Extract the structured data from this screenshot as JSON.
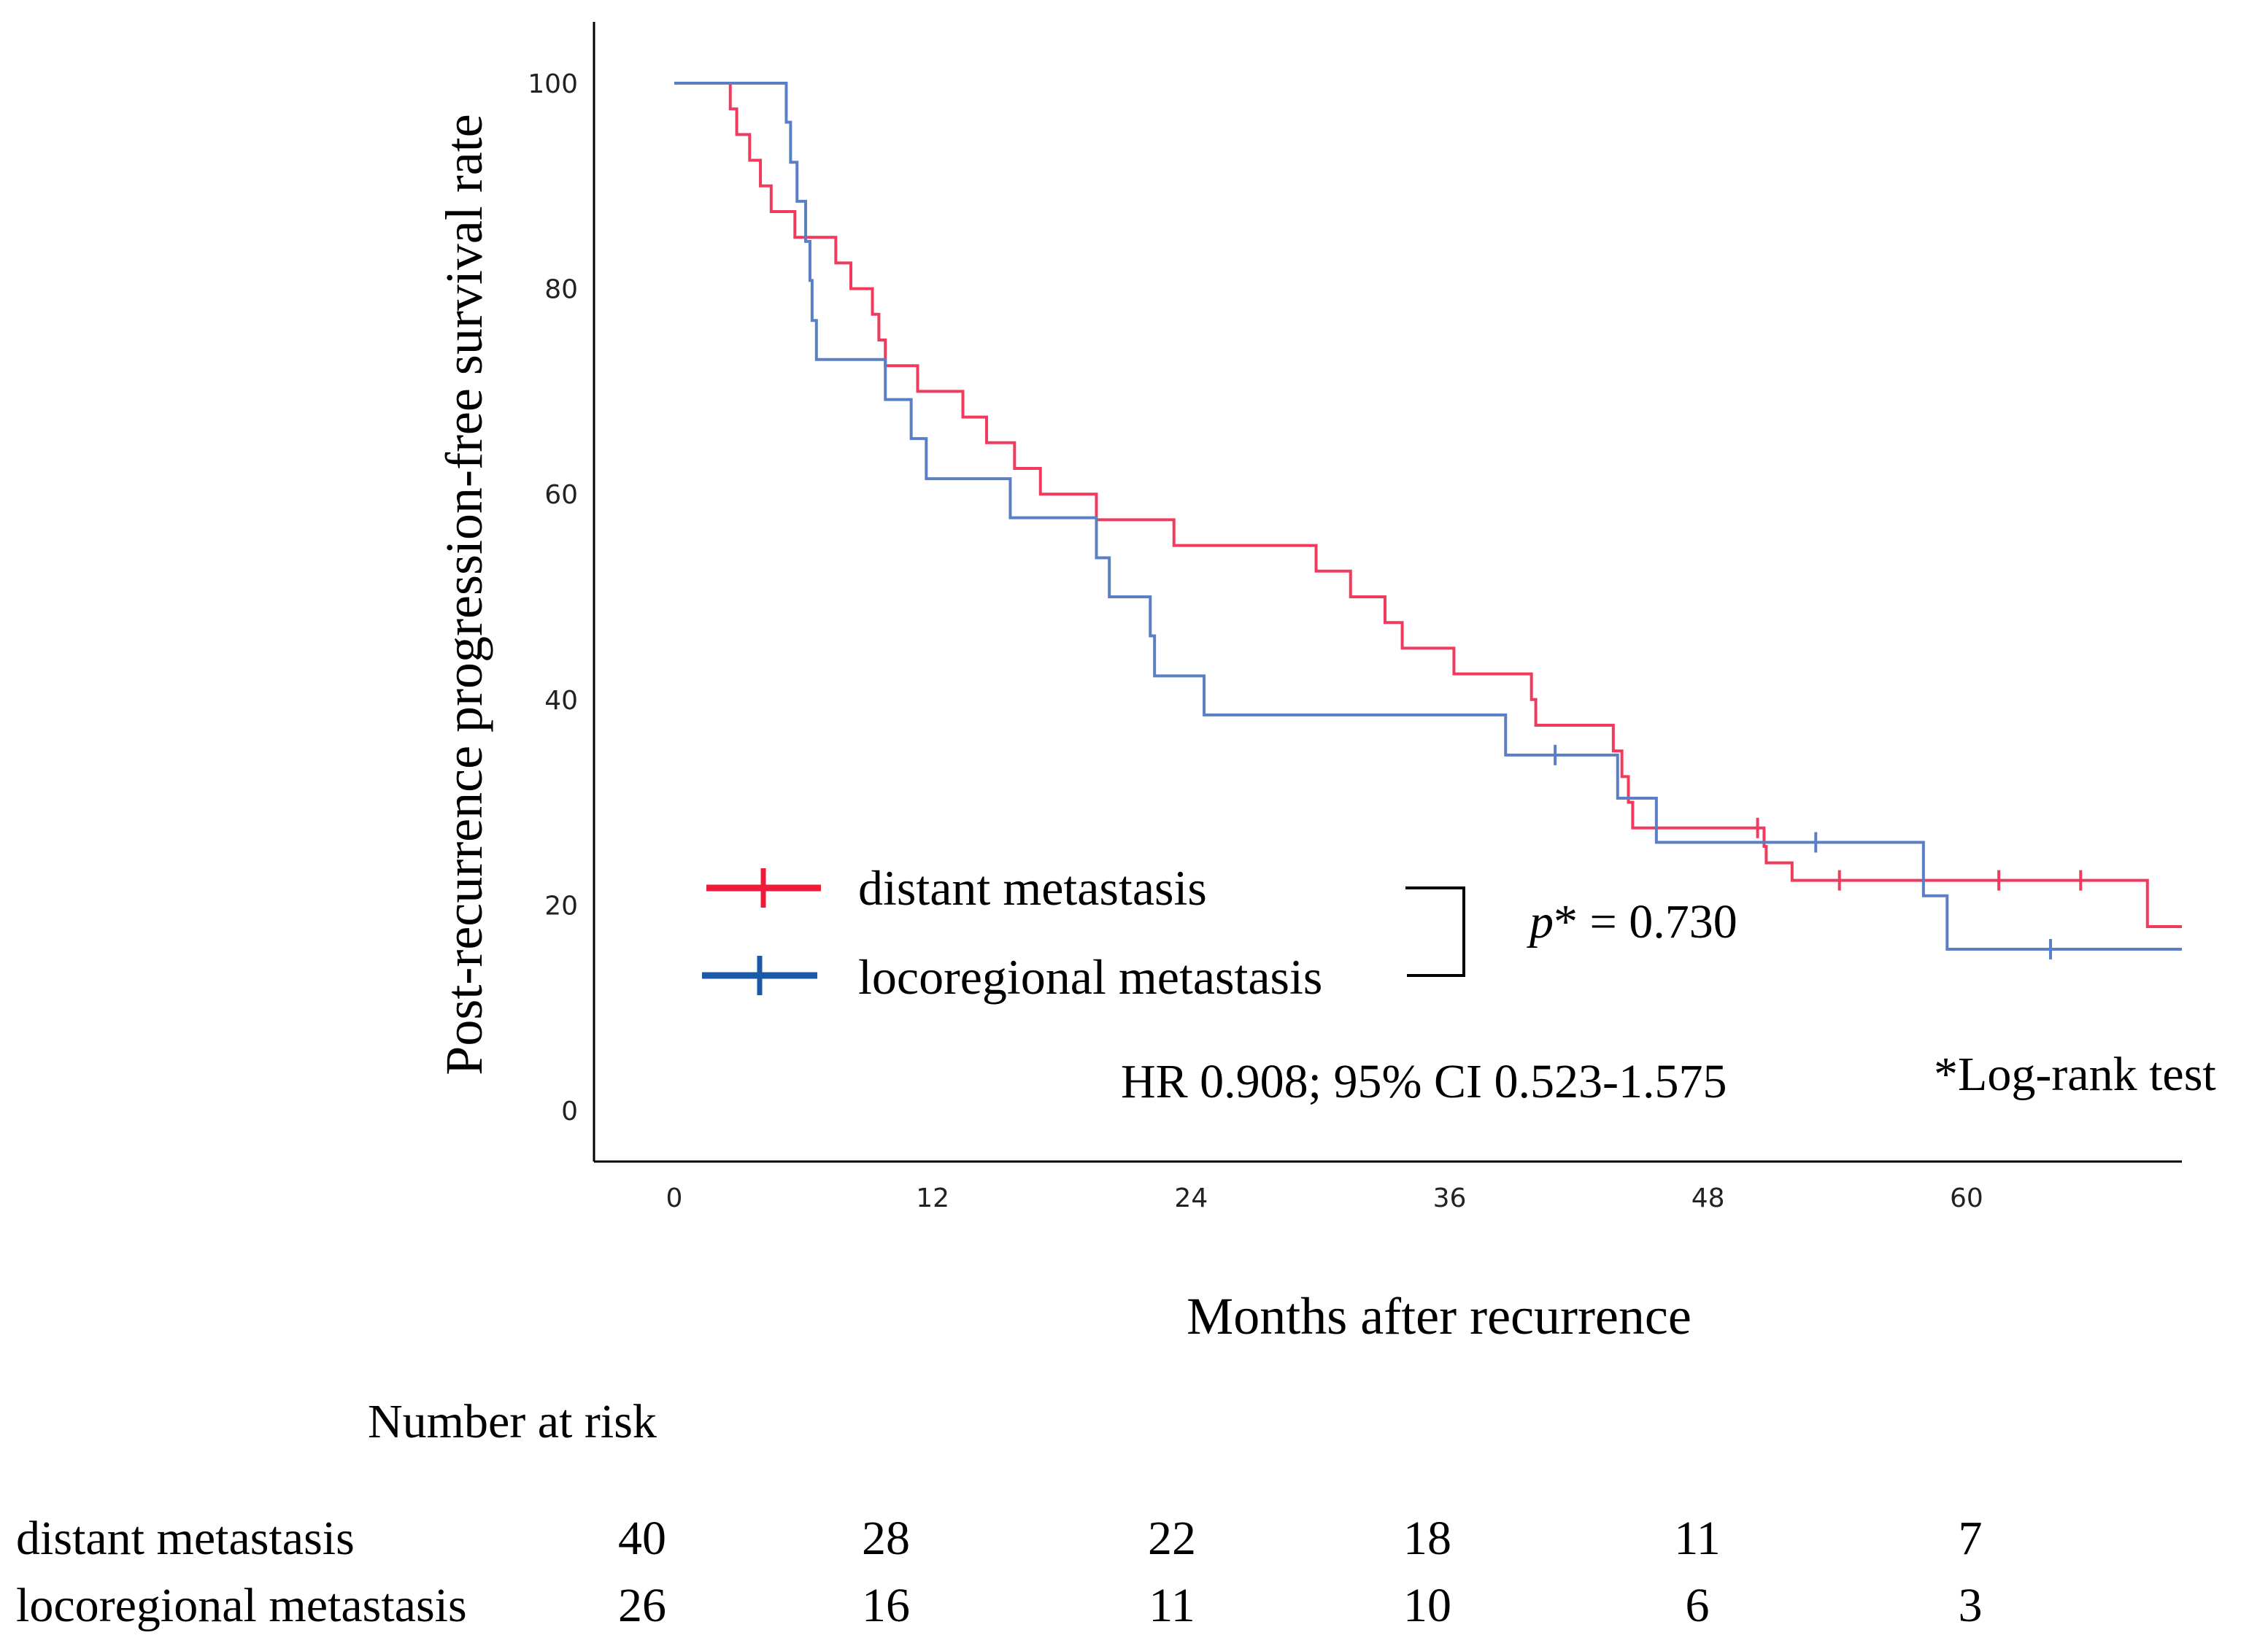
{
  "chart_data": {
    "type": "line",
    "subtype": "kaplan-meier",
    "xlabel": "Months after recurrence",
    "ylabel": "Post-recurrence progression-free survival rate",
    "xlim": [
      0,
      70
    ],
    "ylim": [
      0,
      100
    ],
    "xticks": [
      0,
      12,
      24,
      36,
      48,
      60
    ],
    "yticks": [
      0,
      20,
      40,
      60,
      80,
      100
    ],
    "grid": false,
    "legend_position": "lower-left",
    "series": [
      {
        "name": "distant metastasis",
        "color": "#ee3b5e",
        "steps": [
          [
            0,
            100
          ],
          [
            2.6,
            97.5
          ],
          [
            2.9,
            95
          ],
          [
            3.5,
            92.5
          ],
          [
            4.0,
            90
          ],
          [
            4.5,
            87.5
          ],
          [
            5.6,
            85
          ],
          [
            7.5,
            82.5
          ],
          [
            8.2,
            80
          ],
          [
            9.2,
            77.5
          ],
          [
            9.5,
            75
          ],
          [
            9.8,
            72.5
          ],
          [
            11.3,
            70
          ],
          [
            13.4,
            67.5
          ],
          [
            14.5,
            65
          ],
          [
            15.8,
            62.5
          ],
          [
            17.0,
            60
          ],
          [
            19.6,
            57.5
          ],
          [
            23.2,
            55
          ],
          [
            29.8,
            52.5
          ],
          [
            31.4,
            50
          ],
          [
            33.0,
            47.5
          ],
          [
            33.8,
            45
          ],
          [
            36.2,
            42.5
          ],
          [
            39.8,
            40
          ],
          [
            40.0,
            37.5
          ],
          [
            43.6,
            35
          ],
          [
            44.0,
            32.5
          ],
          [
            44.3,
            30
          ],
          [
            44.5,
            27.5
          ],
          [
            50.6,
            25.7
          ],
          [
            50.7,
            24.1
          ],
          [
            51.9,
            22.4
          ],
          [
            68.4,
            17.9
          ]
        ],
        "end_x": 70,
        "censored": [
          50.3,
          54.1,
          61.5,
          65.3
        ]
      },
      {
        "name": "locoregional metastasis",
        "color": "#5b7fc4",
        "steps": [
          [
            0,
            100
          ],
          [
            5.2,
            96.2
          ],
          [
            5.4,
            92.3
          ],
          [
            5.7,
            88.5
          ],
          [
            6.1,
            84.6
          ],
          [
            6.3,
            80.8
          ],
          [
            6.4,
            76.9
          ],
          [
            6.6,
            73.1
          ],
          [
            9.8,
            69.2
          ],
          [
            11.0,
            65.4
          ],
          [
            11.7,
            61.5
          ],
          [
            15.6,
            57.7
          ],
          [
            19.6,
            53.8
          ],
          [
            20.2,
            50.0
          ],
          [
            22.1,
            46.2
          ],
          [
            22.3,
            42.3
          ],
          [
            24.6,
            38.5
          ],
          [
            38.6,
            34.6
          ],
          [
            43.8,
            30.4
          ],
          [
            45.6,
            26.1
          ],
          [
            58.0,
            20.9
          ],
          [
            59.1,
            15.7
          ]
        ],
        "end_x": 70,
        "censored": [
          40.9,
          53.0,
          63.9
        ]
      }
    ],
    "annotations": {
      "p_value_label": "p",
      "p_value_rest": "* = 0.730",
      "hr_text": "HR 0.908; 95% CI 0.523-1.575",
      "test_note": "*Log-rank test"
    },
    "risk_table": {
      "title": "Number at risk",
      "times": [
        0,
        12,
        24,
        36,
        48,
        60
      ],
      "rows": [
        {
          "label": "distant metastasis",
          "values": [
            "40",
            "28",
            "22",
            "18",
            "11",
            "7"
          ]
        },
        {
          "label": "locoregional metastasis",
          "values": [
            "26",
            "16",
            "11",
            "10",
            "6",
            "3"
          ]
        }
      ]
    }
  }
}
